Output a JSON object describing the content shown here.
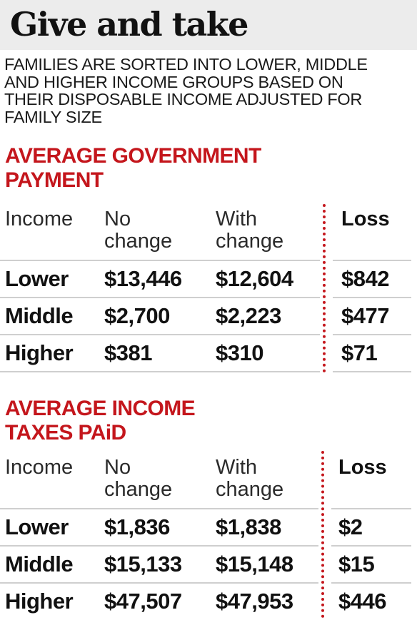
{
  "title": "Give and take",
  "intro": [
    "FAMILIES ARE SORTED INTO LOWER, MIDDLE",
    "AND HIGHER INCOME GROUPS BASED ON",
    "THEIR DISPOSABLE INCOME ADJUSTED FOR",
    "FAMILY SIZE"
  ],
  "sections": [
    {
      "title_lines": [
        "AVERAGE GOVERNMENT",
        "PAYMENT"
      ],
      "headers": {
        "income": "Income",
        "no_change": [
          "No",
          "change"
        ],
        "with_change": [
          "With",
          "change"
        ],
        "loss": "Loss"
      },
      "rows": [
        {
          "income": "Lower",
          "no_change": "$13,446",
          "with_change": "$12,604",
          "loss": "$842"
        },
        {
          "income": "Middle",
          "no_change": "$2,700",
          "with_change": "$2,223",
          "loss": "$477"
        },
        {
          "income": "Higher",
          "no_change": "$381",
          "with_change": "$310",
          "loss": "$71"
        }
      ]
    },
    {
      "title_lines": [
        "AVERAGE INCOME",
        "TAXES PAiD"
      ],
      "headers": {
        "income": "Income",
        "no_change": [
          "No",
          "change"
        ],
        "with_change": [
          "With",
          "change"
        ],
        "loss": "Loss"
      },
      "rows": [
        {
          "income": "Lower",
          "no_change": "$1,836",
          "with_change": "$1,838",
          "loss": "$2"
        },
        {
          "income": "Middle",
          "no_change": "$15,133",
          "with_change": "$15,148",
          "loss": "$15"
        },
        {
          "income": "Higher",
          "no_change": "$47,507",
          "with_change": "$47,953",
          "loss": "$446"
        }
      ]
    }
  ],
  "colors": {
    "accent": "#c4161c",
    "header_bg": "#ececec",
    "rule": "#cfcfcf"
  }
}
